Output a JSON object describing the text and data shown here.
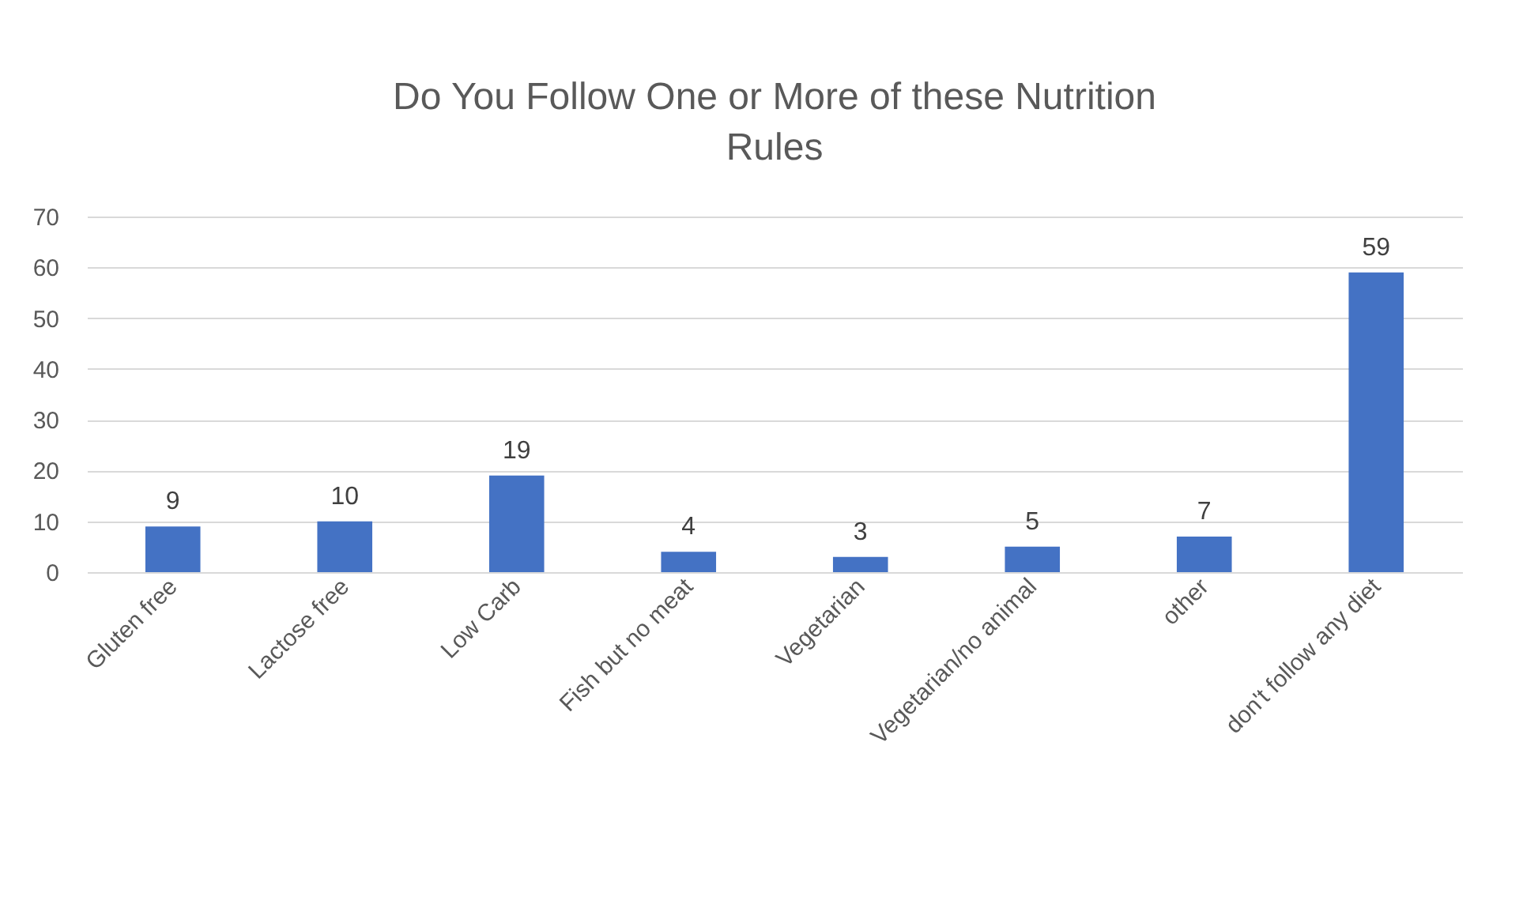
{
  "chart_data": {
    "type": "bar",
    "title": "Do You Follow One or More of these Nutrition Rules",
    "categories": [
      "Gluten free",
      "Lactose free",
      "Low Carb",
      "Fish but no meat",
      "Vegetarian",
      "Vegetarian/no animal",
      "other",
      "don't follow any diet"
    ],
    "values": [
      9,
      10,
      19,
      4,
      3,
      5,
      7,
      59
    ],
    "color": "#4472c4",
    "ylim": [
      0,
      70
    ],
    "yticks": [
      0,
      10,
      20,
      30,
      40,
      50,
      60,
      70
    ],
    "grid": "y",
    "data_labels": true
  }
}
